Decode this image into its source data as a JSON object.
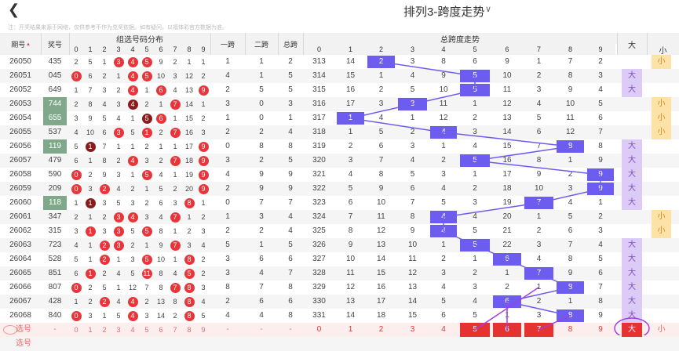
{
  "header": {
    "back_icon": "chevron-left-icon",
    "title": "排列3-跨度走势",
    "dropdown_icon": "chevron-down-icon",
    "disclaimer": "注：开奖结果来源于网络，仅供参考不作为兑奖依据。如有疑问，以福体彩官方数据为准。"
  },
  "columns": {
    "period": "期号",
    "prize": "奖号",
    "distribution": "组选号码分布",
    "span1": "一跨",
    "span2": "二跨",
    "span_total": "总跨",
    "trend": "总跨度走势",
    "big": "大",
    "small": "小"
  },
  "digits": [
    "0",
    "1",
    "2",
    "3",
    "4",
    "5",
    "6",
    "7",
    "8",
    "9"
  ],
  "rows": [
    {
      "period": "26050",
      "prize": "435",
      "prize_hl": false,
      "dist": [
        "2",
        "5",
        "1",
        "3",
        "4",
        "5",
        "9",
        "2",
        "1",
        "1"
      ],
      "balls": [
        3,
        4,
        5
      ],
      "dark": [],
      "s1": "1",
      "s2": "1",
      "st": "2",
      "trend": [
        "313",
        "14",
        "2",
        "3",
        "8",
        "6",
        "9",
        "1",
        "7",
        "2"
      ],
      "pos": 2,
      "bs": "小"
    },
    {
      "period": "26051",
      "prize": "045",
      "prize_hl": false,
      "dist": [
        "0",
        "6",
        "2",
        "1",
        "4",
        "5",
        "10",
        "3",
        "12",
        "2"
      ],
      "balls": [
        0,
        4,
        5
      ],
      "dark": [],
      "s1": "4",
      "s2": "1",
      "st": "5",
      "trend": [
        "314",
        "15",
        "1",
        "4",
        "9",
        "5",
        "10",
        "2",
        "8",
        "3"
      ],
      "pos": 5,
      "bs": "大"
    },
    {
      "period": "26052",
      "prize": "649",
      "prize_hl": false,
      "dist": [
        "1",
        "7",
        "3",
        "2",
        "4",
        "1",
        "6",
        "4",
        "13",
        "9"
      ],
      "balls": [
        4,
        6,
        9
      ],
      "dark": [],
      "s1": "2",
      "s2": "5",
      "st": "5",
      "trend": [
        "315",
        "16",
        "2",
        "5",
        "10",
        "5",
        "11",
        "3",
        "9",
        "4"
      ],
      "pos": 5,
      "bs": "大"
    },
    {
      "period": "26053",
      "prize": "744",
      "prize_hl": true,
      "dist": [
        "2",
        "8",
        "4",
        "3",
        "4",
        "2",
        "1",
        "7",
        "14",
        "1"
      ],
      "balls": [
        4,
        7
      ],
      "dark": [
        4
      ],
      "s1": "3",
      "s2": "0",
      "st": "3",
      "trend": [
        "316",
        "17",
        "3",
        "3",
        "11",
        "1",
        "12",
        "4",
        "10",
        "5"
      ],
      "pos": 3,
      "bs": "小"
    },
    {
      "period": "26054",
      "prize": "655",
      "prize_hl": true,
      "dist": [
        "3",
        "9",
        "5",
        "4",
        "1",
        "5",
        "6",
        "1",
        "15",
        "2"
      ],
      "balls": [
        5,
        6
      ],
      "dark": [
        5
      ],
      "s1": "1",
      "s2": "0",
      "st": "1",
      "trend": [
        "317",
        "1",
        "4",
        "1",
        "12",
        "2",
        "13",
        "5",
        "11",
        "6"
      ],
      "pos": 1,
      "bs": "小"
    },
    {
      "period": "26055",
      "prize": "537",
      "prize_hl": false,
      "dist": [
        "4",
        "10",
        "6",
        "3",
        "5",
        "1",
        "2",
        "7",
        "16",
        "3"
      ],
      "balls": [
        3,
        5,
        7
      ],
      "dark": [],
      "s1": "2",
      "s2": "2",
      "st": "4",
      "trend": [
        "318",
        "1",
        "5",
        "2",
        "4",
        "3",
        "14",
        "6",
        "12",
        "7"
      ],
      "pos": 4,
      "bs": "小"
    },
    {
      "period": "26056",
      "prize": "119",
      "prize_hl": true,
      "dist": [
        "5",
        "1",
        "7",
        "1",
        "1",
        "2",
        "1",
        "1",
        "17",
        "9"
      ],
      "balls": [
        1,
        9
      ],
      "dark": [
        1
      ],
      "s1": "0",
      "s2": "8",
      "st": "8",
      "trend": [
        "319",
        "2",
        "6",
        "3",
        "1",
        "4",
        "15",
        "7",
        "8",
        "8"
      ],
      "pos": 8,
      "bs": "大"
    },
    {
      "period": "26057",
      "prize": "479",
      "prize_hl": false,
      "dist": [
        "6",
        "1",
        "8",
        "2",
        "4",
        "3",
        "2",
        "7",
        "18",
        "9"
      ],
      "balls": [
        4,
        7,
        9
      ],
      "dark": [],
      "s1": "3",
      "s2": "2",
      "st": "5",
      "trend": [
        "320",
        "3",
        "7",
        "4",
        "2",
        "5",
        "16",
        "8",
        "1",
        "9"
      ],
      "pos": 5,
      "bs": "大"
    },
    {
      "period": "26058",
      "prize": "590",
      "prize_hl": false,
      "dist": [
        "0",
        "2",
        "9",
        "3",
        "1",
        "5",
        "4",
        "1",
        "19",
        "9"
      ],
      "balls": [
        0,
        5,
        9
      ],
      "dark": [],
      "s1": "4",
      "s2": "9",
      "st": "9",
      "trend": [
        "321",
        "4",
        "8",
        "5",
        "3",
        "1",
        "17",
        "9",
        "2",
        "9"
      ],
      "pos": 9,
      "bs": "大"
    },
    {
      "period": "26059",
      "prize": "209",
      "prize_hl": false,
      "dist": [
        "0",
        "3",
        "2",
        "4",
        "2",
        "1",
        "5",
        "2",
        "20",
        "9"
      ],
      "balls": [
        0,
        2,
        9
      ],
      "dark": [],
      "s1": "2",
      "s2": "9",
      "st": "9",
      "trend": [
        "322",
        "5",
        "9",
        "6",
        "4",
        "2",
        "18",
        "10",
        "3",
        "9"
      ],
      "pos": 9,
      "bs": "大"
    },
    {
      "period": "26060",
      "prize": "118",
      "prize_hl": true,
      "dist": [
        "1",
        "1",
        "3",
        "5",
        "3",
        "2",
        "6",
        "3",
        "8",
        "1"
      ],
      "balls": [
        1,
        8
      ],
      "dark": [
        1
      ],
      "s1": "0",
      "s2": "7",
      "st": "7",
      "trend": [
        "323",
        "6",
        "10",
        "7",
        "5",
        "3",
        "19",
        "7",
        "4",
        "1"
      ],
      "pos": 7,
      "bs": "大"
    },
    {
      "period": "26061",
      "prize": "347",
      "prize_hl": false,
      "dist": [
        "2",
        "1",
        "2",
        "3",
        "4",
        "3",
        "4",
        "7",
        "1",
        "2"
      ],
      "balls": [
        3,
        4,
        7
      ],
      "dark": [],
      "s1": "1",
      "s2": "3",
      "st": "4",
      "trend": [
        "324",
        "7",
        "11",
        "8",
        "4",
        "4",
        "20",
        "1",
        "5",
        "2"
      ],
      "pos": 4,
      "bs": "小"
    },
    {
      "period": "26062",
      "prize": "315",
      "prize_hl": false,
      "dist": [
        "3",
        "1",
        "3",
        "3",
        "5",
        "5",
        "8",
        "1",
        "2",
        "3"
      ],
      "balls": [
        1,
        3,
        5
      ],
      "dark": [],
      "s1": "2",
      "s2": "2",
      "st": "4",
      "trend": [
        "325",
        "8",
        "12",
        "9",
        "4",
        "5",
        "21",
        "2",
        "6",
        "3"
      ],
      "pos": 4,
      "bs": "小"
    },
    {
      "period": "26063",
      "prize": "723",
      "prize_hl": false,
      "dist": [
        "4",
        "1",
        "2",
        "3",
        "2",
        "1",
        "9",
        "7",
        "3",
        "4"
      ],
      "balls": [
        2,
        3,
        7
      ],
      "dark": [],
      "s1": "5",
      "s2": "1",
      "st": "5",
      "trend": [
        "326",
        "9",
        "13",
        "10",
        "1",
        "5",
        "22",
        "3",
        "7",
        "4"
      ],
      "pos": 5,
      "bs": "大"
    },
    {
      "period": "26064",
      "prize": "528",
      "prize_hl": false,
      "dist": [
        "5",
        "1",
        "2",
        "1",
        "3",
        "5",
        "10",
        "1",
        "8",
        "2"
      ],
      "balls": [
        2,
        5,
        8
      ],
      "dark": [],
      "s1": "3",
      "s2": "6",
      "st": "6",
      "trend": [
        "327",
        "10",
        "14",
        "11",
        "2",
        "1",
        "6",
        "4",
        "8",
        "5"
      ],
      "pos": 6,
      "bs": "大"
    },
    {
      "period": "26065",
      "prize": "851",
      "prize_hl": false,
      "dist": [
        "6",
        "1",
        "2",
        "4",
        "5",
        "11",
        "8",
        "4",
        "5",
        "2"
      ],
      "balls": [
        1,
        5,
        8
      ],
      "dark": [],
      "s1": "3",
      "s2": "4",
      "st": "7",
      "trend": [
        "328",
        "11",
        "15",
        "12",
        "3",
        "2",
        "1",
        "7",
        "9",
        "6"
      ],
      "pos": 7,
      "bs": "大"
    },
    {
      "period": "26066",
      "prize": "807",
      "prize_hl": false,
      "dist": [
        "0",
        "2",
        "5",
        "1",
        "12",
        "7",
        "8",
        "7",
        "8",
        "3"
      ],
      "balls": [
        0,
        7,
        8
      ],
      "dark": [],
      "s1": "8",
      "s2": "7",
      "st": "8",
      "trend": [
        "329",
        "12",
        "16",
        "13",
        "4",
        "3",
        "2",
        "1",
        "8",
        "7"
      ],
      "pos": 8,
      "bs": "大"
    },
    {
      "period": "26067",
      "prize": "428",
      "prize_hl": false,
      "dist": [
        "1",
        "2",
        "2",
        "4",
        "4",
        "2",
        "13",
        "8",
        "8",
        "4"
      ],
      "balls": [
        2,
        4,
        8
      ],
      "dark": [],
      "s1": "2",
      "s2": "6",
      "st": "6",
      "trend": [
        "330",
        "13",
        "17",
        "14",
        "5",
        "4",
        "6",
        "2",
        "1",
        "8"
      ],
      "pos": 6,
      "bs": "大"
    },
    {
      "period": "26068",
      "prize": "840",
      "prize_hl": false,
      "dist": [
        "0",
        "3",
        "1",
        "5",
        "4",
        "3",
        "14",
        "2",
        "8",
        "5"
      ],
      "balls": [
        0,
        4,
        8
      ],
      "dark": [],
      "s1": "4",
      "s2": "4",
      "st": "8",
      "trend": [
        "331",
        "14",
        "18",
        "15",
        "6",
        "5",
        "1",
        "3",
        "8",
        "9"
      ],
      "pos": 8,
      "bs": "大"
    }
  ],
  "pick_row": {
    "label": "选号",
    "prize": "-",
    "dist": [
      "0",
      "1",
      "2",
      "3",
      "4",
      "5",
      "6",
      "7",
      "8",
      "9"
    ],
    "s1": "-",
    "s2": "-",
    "st": "-",
    "trend": [
      "0",
      "1",
      "2",
      "3",
      "4",
      "5",
      "6",
      "7",
      "8",
      "9"
    ],
    "picked": [
      5,
      6,
      7
    ],
    "bs": "大",
    "bs_small": "小"
  },
  "pick_row2": {
    "label": "选号"
  },
  "colors": {
    "mark": "#6d5cf0",
    "ball": "#e9353a",
    "ball_dark": "#8b1b1b",
    "prize_highlight": "#7fa98a",
    "big_bg": "#dccbf6",
    "small_bg": "#fde2a8",
    "picked": "#e53232"
  }
}
